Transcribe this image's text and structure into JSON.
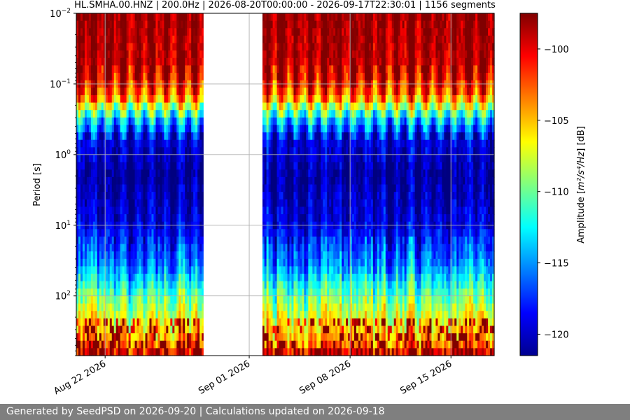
{
  "chart_data": {
    "type": "heatmap",
    "title": "HL.SMHA.00.HNZ | 200.0Hz | 2026-08-20T00:00:00 - 2026-09-17T22:30:01 | 1156 segments",
    "xlabel": "",
    "ylabel": "Period [s]",
    "y_scale": "log",
    "y_inverted": true,
    "ylim": [
      0.01,
      700
    ],
    "xlim": [
      "2026-08-20",
      "2026-09-18"
    ],
    "x_ticks": [
      {
        "date": "2026-08-22",
        "label": "Aug 22 2026"
      },
      {
        "date": "2026-09-01",
        "label": "Sep 01 2026"
      },
      {
        "date": "2026-09-08",
        "label": "Sep 08 2026"
      },
      {
        "date": "2026-09-15",
        "label": "Sep 15 2026"
      }
    ],
    "y_ticks": [
      {
        "value": 0.01,
        "base": "10",
        "exp": "−2"
      },
      {
        "value": 0.1,
        "base": "10",
        "exp": "−1"
      },
      {
        "value": 1,
        "base": "10",
        "exp": "0"
      },
      {
        "value": 10,
        "base": "10",
        "exp": "1"
      },
      {
        "value": 100,
        "base": "10",
        "exp": "2"
      }
    ],
    "data_gap": [
      "2026-08-28T20:00:00",
      "2026-09-01T22:00:00"
    ],
    "grid": true,
    "colorbar": {
      "label_prefix": "Amplitude [",
      "label_unit": "m²/s⁴/Hz",
      "label_suffix": "] [dB]",
      "colormap": "jet",
      "range": [
        -121.5,
        -97.5
      ],
      "ticks": [
        {
          "value": -100,
          "label": "−100"
        },
        {
          "value": -105,
          "label": "−105"
        },
        {
          "value": -110,
          "label": "−110"
        },
        {
          "value": -115,
          "label": "−115"
        },
        {
          "value": -120,
          "label": "−120"
        }
      ]
    },
    "amplitude_profile": [
      {
        "period": 0.01,
        "db": -98
      },
      {
        "period": 0.07,
        "db": -99
      },
      {
        "period": 0.15,
        "db": -103
      },
      {
        "period": 0.3,
        "db": -113
      },
      {
        "period": 0.6,
        "db": -119
      },
      {
        "period": 2,
        "db": -121
      },
      {
        "period": 10,
        "db": -119
      },
      {
        "period": 40,
        "db": -115
      },
      {
        "period": 100,
        "db": -110
      },
      {
        "period": 200,
        "db": -107
      },
      {
        "period": 450,
        "db": -104
      },
      {
        "period": 700,
        "db": -99
      }
    ]
  },
  "footer": {
    "text": "Generated by SeedPSD on 2026-09-20 | Calculations updated on 2026-09-18"
  }
}
